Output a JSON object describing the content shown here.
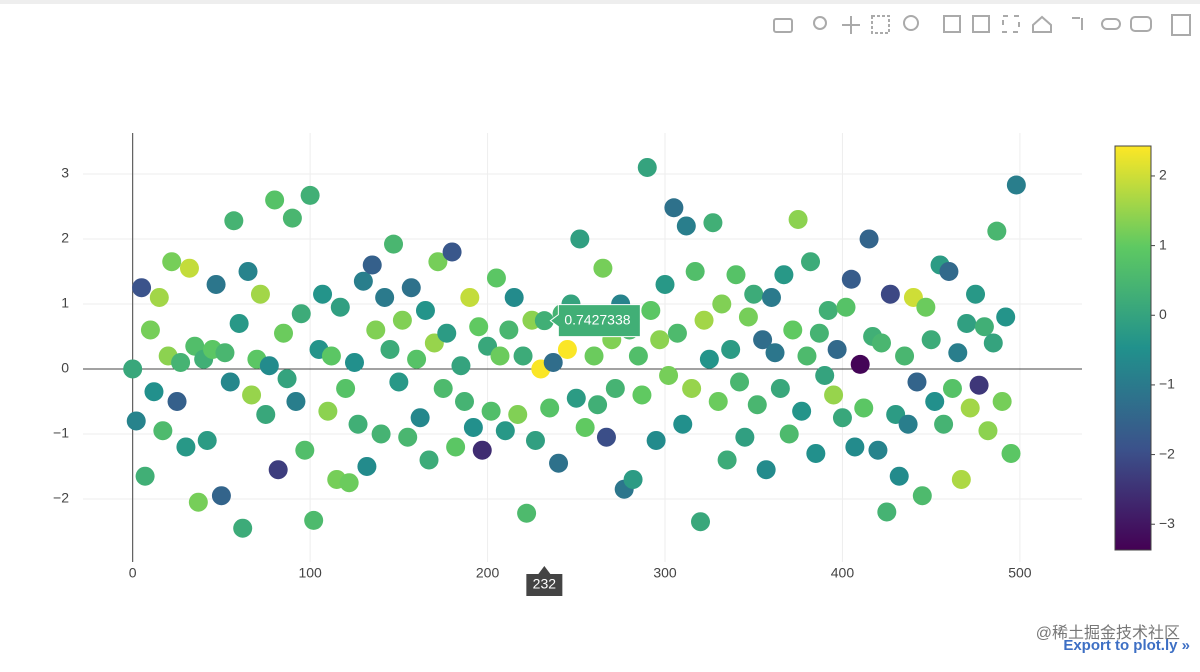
{
  "chart_data": {
    "type": "scatter",
    "x": [
      0,
      2,
      5,
      7,
      10,
      12,
      15,
      17,
      20,
      22,
      25,
      27,
      30,
      32,
      35,
      37,
      40,
      42,
      45,
      47,
      50,
      52,
      55,
      57,
      60,
      62,
      65,
      67,
      70,
      72,
      75,
      77,
      80,
      82,
      85,
      87,
      90,
      92,
      95,
      97,
      100,
      102,
      105,
      107,
      110,
      112,
      115,
      117,
      120,
      122,
      125,
      127,
      130,
      132,
      135,
      137,
      140,
      142,
      145,
      147,
      150,
      152,
      155,
      157,
      160,
      162,
      165,
      167,
      170,
      172,
      175,
      177,
      180,
      182,
      185,
      187,
      190,
      192,
      195,
      197,
      200,
      202,
      205,
      207,
      210,
      212,
      215,
      217,
      220,
      222,
      225,
      227,
      230,
      232,
      235,
      237,
      240,
      242,
      245,
      247,
      250,
      252,
      255,
      257,
      260,
      262,
      265,
      267,
      270,
      272,
      275,
      277,
      280,
      282,
      285,
      287,
      290,
      292,
      295,
      297,
      300,
      302,
      305,
      307,
      310,
      312,
      315,
      317,
      320,
      322,
      325,
      327,
      330,
      332,
      335,
      337,
      340,
      342,
      345,
      347,
      350,
      352,
      355,
      357,
      360,
      362,
      365,
      367,
      370,
      372,
      375,
      377,
      380,
      382,
      385,
      387,
      390,
      392,
      395,
      397,
      400,
      402,
      405,
      407,
      410,
      412,
      415,
      417,
      420,
      422,
      425,
      427,
      430,
      432,
      435,
      437,
      440,
      442,
      445,
      447,
      450,
      452,
      455,
      457,
      460,
      462,
      465,
      467,
      470,
      472,
      475,
      477,
      480,
      482,
      485,
      487,
      490,
      492,
      495,
      498
    ],
    "y": [
      0,
      -0.8,
      1.25,
      -1.65,
      0.6,
      -0.35,
      1.1,
      -0.95,
      0.2,
      1.65,
      -0.5,
      0.1,
      -1.2,
      1.55,
      0.35,
      -2.05,
      0.15,
      -1.1,
      0.3,
      1.3,
      -1.95,
      0.25,
      -0.2,
      2.28,
      0.7,
      -2.45,
      1.5,
      -0.4,
      0.15,
      1.15,
      -0.7,
      0.05,
      2.6,
      -1.55,
      0.55,
      -0.15,
      2.32,
      -0.5,
      0.85,
      -1.25,
      2.67,
      -2.33,
      0.3,
      1.15,
      -0.65,
      0.2,
      -1.7,
      0.95,
      -0.3,
      -1.75,
      0.1,
      -0.85,
      1.35,
      -1.5,
      1.6,
      0.6,
      -1.0,
      1.1,
      0.3,
      1.92,
      -0.2,
      0.75,
      -1.05,
      1.25,
      0.15,
      -0.75,
      0.9,
      -1.4,
      0.4,
      1.65,
      -0.3,
      0.55,
      1.8,
      -1.2,
      0.05,
      -0.5,
      1.1,
      -0.9,
      0.65,
      -1.25,
      0.35,
      -0.65,
      1.4,
      0.2,
      -0.95,
      0.6,
      1.1,
      -0.7,
      0.2,
      -2.22,
      0.75,
      -1.1,
      0,
      0.7427338,
      -0.6,
      0.1,
      -1.45,
      0.85,
      0.3,
      1.0,
      -0.45,
      2.0,
      -0.9,
      0.7,
      0.2,
      -0.55,
      1.55,
      -1.05,
      0.45,
      -0.3,
      1.0,
      -1.85,
      0.6,
      -1.7,
      0.2,
      -0.4,
      3.1,
      0.9,
      -1.1,
      0.45,
      1.3,
      -0.1,
      2.48,
      0.55,
      -0.85,
      2.2,
      -0.3,
      1.5,
      -2.35,
      0.75,
      0.15,
      2.25,
      -0.5,
      1.0,
      -1.4,
      0.3,
      1.45,
      -0.2,
      -1.05,
      0.8,
      1.15,
      -0.55,
      0.45,
      -1.55,
      1.1,
      0.25,
      -0.3,
      1.45,
      -1.0,
      0.6,
      2.3,
      -0.65,
      0.2,
      1.65,
      -1.3,
      0.55,
      -0.1,
      0.9,
      -0.4,
      0.3,
      -0.75,
      0.95,
      1.38,
      -1.2,
      0.07,
      -0.6,
      2.0,
      0.5,
      -1.25,
      0.4,
      -2.2,
      1.15,
      -0.7,
      -1.65,
      0.2,
      -0.85,
      1.1,
      -0.2,
      -1.95,
      0.95,
      0.45,
      -0.5,
      1.6,
      -0.85,
      1.5,
      -0.3,
      0.25,
      -1.7,
      0.7,
      -0.6,
      1.15,
      -0.25,
      0.65,
      -0.95,
      0.4,
      2.12,
      -0.5,
      0.8,
      -1.3,
      2.83
    ],
    "marker_color": [
      0.1,
      -0.8,
      -1.9,
      0.3,
      1.2,
      -0.5,
      1.6,
      0.6,
      1.4,
      1.2,
      -1.6,
      0.4,
      -0.3,
      1.9,
      0.7,
      1.2,
      0.3,
      -0.2,
      0.9,
      -1.1,
      -1.5,
      0.5,
      -0.7,
      0.4,
      -0.3,
      0.2,
      -0.8,
      1.5,
      0.9,
      1.6,
      0.1,
      -0.6,
      0.8,
      -2.3,
      1.1,
      0.0,
      0.5,
      -0.9,
      0.2,
      0.7,
      0.3,
      0.6,
      -0.4,
      -0.4,
      1.4,
      0.9,
      1.2,
      -0.1,
      0.8,
      1.1,
      -0.5,
      0.3,
      -0.9,
      -0.6,
      -1.6,
      1.3,
      0.4,
      -1.0,
      0.2,
      0.5,
      -0.3,
      1.3,
      0.5,
      -1.2,
      0.8,
      -0.7,
      -0.4,
      0.2,
      1.5,
      1.2,
      0.6,
      -0.2,
      -1.8,
      0.9,
      0.0,
      0.4,
      1.9,
      -0.5,
      1.0,
      -2.6,
      0.1,
      0.7,
      0.9,
      1.1,
      -0.3,
      0.5,
      -0.6,
      1.3,
      0.2,
      0.6,
      1.4,
      -0.1,
      2.4,
      0.3,
      0.8,
      -1.3,
      -1.2,
      0.4,
      2.4,
      0.0,
      -0.2,
      -0.1,
      1.0,
      0.9,
      1.1,
      0.3,
      1.2,
      -2.0,
      1.3,
      0.4,
      -0.8,
      -1.1,
      0.6,
      -0.2,
      0.7,
      1.0,
      0.0,
      0.9,
      -0.6,
      1.4,
      -0.3,
      1.2,
      -1.2,
      0.6,
      -0.5,
      -0.9,
      1.5,
      0.7,
      0.1,
      1.6,
      -0.4,
      0.3,
      1.1,
      1.3,
      0.2,
      -0.2,
      0.8,
      0.5,
      -0.1,
      1.2,
      0.2,
      0.5,
      -1.3,
      -0.6,
      -1.0,
      -1.1,
      0.1,
      -0.3,
      0.6,
      1.0,
      1.4,
      -0.4,
      0.6,
      0.2,
      -0.5,
      0.4,
      0.0,
      0.3,
      1.5,
      -1.4,
      0.1,
      0.8,
      -1.7,
      -0.6,
      -3.3,
      0.9,
      -1.5,
      0.3,
      -0.8,
      0.5,
      0.4,
      -2.1,
      -0.2,
      -0.6,
      0.5,
      -0.9,
      2.0,
      -1.5,
      0.6,
      1.1,
      0.2,
      -0.5,
      -0.2,
      0.4,
      -1.4,
      0.8,
      -0.9,
      1.7,
      -0.1,
      1.6,
      -0.3,
      -2.4,
      0.3,
      1.4,
      0.0,
      0.5,
      1.2,
      -0.4,
      0.9,
      -0.9
    ],
    "colorscale": "Viridis",
    "color_range": [
      -3.37,
      2.43
    ],
    "colorbar_ticks": [
      {
        "value": -3,
        "label": "−3"
      },
      {
        "value": -2,
        "label": "−2"
      },
      {
        "value": -1,
        "label": "−1"
      },
      0,
      1,
      2
    ],
    "xlim": [
      -28,
      535
    ],
    "xticks": [
      0,
      100,
      200,
      300,
      400,
      500
    ],
    "ylim": [
      -2.97,
      3.63
    ],
    "yticks": [
      {
        "value": -2,
        "label": "−2"
      },
      {
        "value": -1,
        "label": "−1"
      },
      0,
      1,
      2,
      3
    ],
    "grid": true,
    "hover": {
      "x": 232,
      "y": 0.7427338
    },
    "export_link": "Export to plot.ly »",
    "watermark": "@稀土掘金技术社区"
  }
}
